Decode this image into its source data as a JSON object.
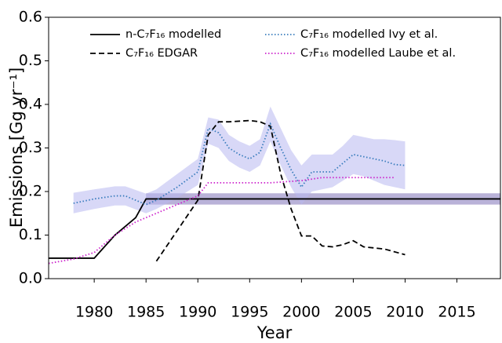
{
  "chart_data": {
    "type": "line",
    "xlabel": "Year",
    "ylabel": "Emissions [Gg yr⁻¹]",
    "xlim": [
      1975.6,
      2019.2
    ],
    "ylim": [
      0,
      0.6
    ],
    "xticks": [
      1980,
      1985,
      1990,
      1995,
      2000,
      2005,
      2010,
      2015
    ],
    "yticks": [
      {
        "value": 0,
        "label": "0.0"
      },
      0.1,
      0.2,
      0.3,
      0.4,
      0.5,
      0.6
    ],
    "legend": "upper",
    "series": [
      {
        "name": "n-C₇F₁₆ modelled",
        "color": "#000000",
        "dash": "solid",
        "x": [
          1975.6,
          1980,
          1982,
          1984,
          1985,
          2019.2
        ],
        "values": [
          0.047,
          0.047,
          0.1,
          0.14,
          0.183,
          0.183
        ],
        "band_color": "#7f72b8",
        "band_x": [
          1985,
          2019.2
        ],
        "band_lower": [
          0.17,
          0.17
        ],
        "band_upper": [
          0.196,
          0.196
        ]
      },
      {
        "name": "C₇F₁₆ EDGAR",
        "color": "#000000",
        "dash": "dashed",
        "x": [
          1986,
          1990,
          1991,
          1992,
          1993,
          1995,
          1996,
          1997,
          1998,
          1999,
          2000,
          2001,
          2002,
          2003,
          2004,
          2005,
          2006,
          2008,
          2010
        ],
        "values": [
          0.04,
          0.18,
          0.33,
          0.36,
          0.36,
          0.363,
          0.36,
          0.35,
          0.24,
          0.16,
          0.098,
          0.098,
          0.075,
          0.073,
          0.078,
          0.087,
          0.073,
          0.068,
          0.055
        ]
      },
      {
        "name": "C₇F₁₆ modelled Ivy et al.",
        "color": "#3a7dbd",
        "dash": "dotted",
        "x": [
          1978,
          1980,
          1982,
          1983,
          1985,
          1986,
          1988,
          1990,
          1991,
          1992,
          1993,
          1994,
          1995,
          1996,
          1997,
          1998,
          1999,
          2000,
          2001,
          2002,
          2003,
          2004,
          2005,
          2006,
          2007,
          2008,
          2009,
          2010
        ],
        "values": [
          0.173,
          0.183,
          0.19,
          0.19,
          0.17,
          0.18,
          0.21,
          0.245,
          0.345,
          0.335,
          0.3,
          0.285,
          0.275,
          0.29,
          0.355,
          0.3,
          0.25,
          0.21,
          0.245,
          0.245,
          0.245,
          0.265,
          0.285,
          0.28,
          0.275,
          0.27,
          0.262,
          0.26
        ],
        "band_color": "#b8b8f0",
        "band_x": [
          1978,
          1980,
          1982,
          1983,
          1985,
          1986,
          1988,
          1990,
          1991,
          1992,
          1993,
          1994,
          1995,
          1996,
          1997,
          1998,
          1999,
          2000,
          2001,
          2002,
          2003,
          2004,
          2005,
          2006,
          2007,
          2008,
          2009,
          2010
        ],
        "band_lower": [
          0.15,
          0.16,
          0.168,
          0.168,
          0.15,
          0.16,
          0.185,
          0.215,
          0.31,
          0.3,
          0.27,
          0.255,
          0.245,
          0.26,
          0.315,
          0.26,
          0.21,
          0.17,
          0.2,
          0.205,
          0.21,
          0.225,
          0.24,
          0.235,
          0.225,
          0.215,
          0.21,
          0.205
        ],
        "band_upper": [
          0.197,
          0.205,
          0.212,
          0.212,
          0.195,
          0.205,
          0.24,
          0.275,
          0.37,
          0.365,
          0.33,
          0.315,
          0.305,
          0.32,
          0.395,
          0.345,
          0.295,
          0.26,
          0.285,
          0.285,
          0.285,
          0.305,
          0.33,
          0.325,
          0.32,
          0.32,
          0.318,
          0.315
        ]
      },
      {
        "name": "C₇F₁₆ modelled Laube et al.",
        "color": "#cc22cc",
        "dash": "dotted",
        "x": [
          1975.6,
          1978,
          1980,
          1982,
          1984,
          1986,
          1988,
          1990,
          1991,
          1997,
          2000,
          2002,
          2009
        ],
        "values": [
          0.035,
          0.045,
          0.06,
          0.1,
          0.13,
          0.15,
          0.17,
          0.19,
          0.22,
          0.22,
          0.225,
          0.232,
          0.232
        ]
      }
    ]
  }
}
